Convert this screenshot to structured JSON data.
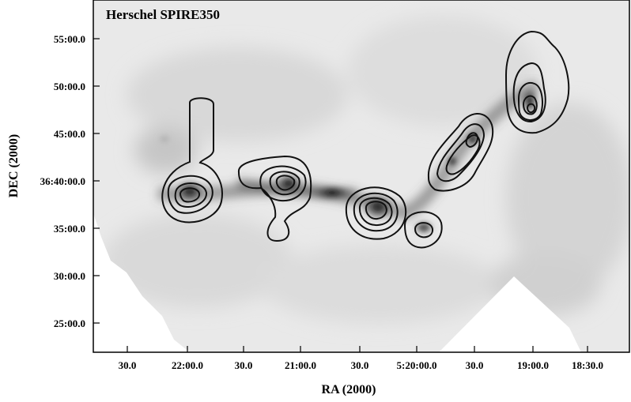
{
  "figure": {
    "title": "Herschel SPIRE350",
    "xlabel": "RA (2000)",
    "ylabel": "DEC (2000)",
    "x_ticks": [
      "30.0",
      "22:00.0",
      "30.0",
      "21:00.0",
      "30.0",
      "5:20:00.0",
      "30.0",
      "19:00.0",
      "18:30.0"
    ],
    "y_ticks": [
      "55:00.0",
      "50:00.0",
      "45:00.0",
      "36:40:00.0",
      "35:00.0",
      "30:00.0",
      "25:00.0"
    ]
  },
  "colors": {
    "frame": "#000000",
    "contour": "#111111",
    "background": "#ffffff"
  }
}
